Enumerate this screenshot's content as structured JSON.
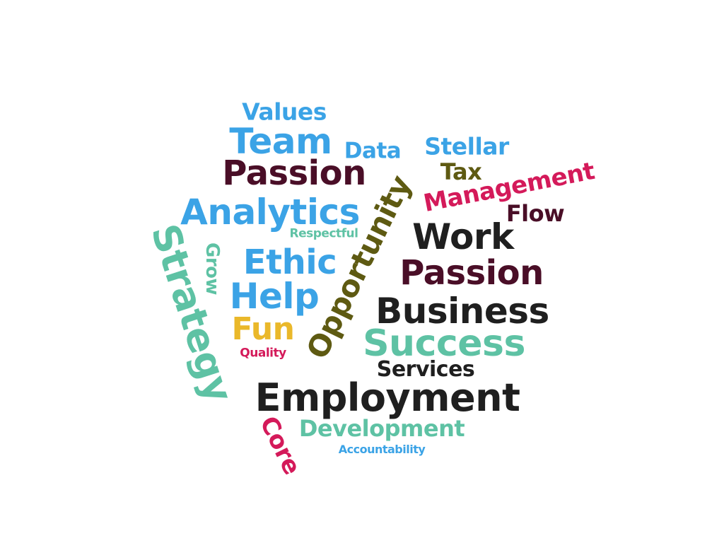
{
  "colors": {
    "blue": "#3ba3e6",
    "maroon": "#4a0e27",
    "olive": "#5e5a12",
    "magenta": "#d41a5a",
    "teal": "#5ec2a4",
    "black": "#1f1f1f",
    "yellow": "#eab82a"
  },
  "words": {
    "values": "Values",
    "team": "Team",
    "data": "Data",
    "stellar": "Stellar",
    "passion1": "Passion",
    "tax": "Tax",
    "management": "Management",
    "analytics": "Analytics",
    "flow": "Flow",
    "respectful": "Respectful",
    "work": "Work",
    "opportunity": "Opportunity",
    "strategy": "Strategy",
    "grow": "Grow",
    "ethic": "Ethic",
    "passion2": "Passion",
    "help": "Help",
    "business": "Business",
    "fun": "Fun",
    "success": "Success",
    "quality": "Quality",
    "services": "Services",
    "employment": "Employment",
    "core": "Core",
    "development": "Development",
    "accountability": "Accountability"
  },
  "word_colors": {
    "values": "blue",
    "team": "blue",
    "data": "blue",
    "stellar": "blue",
    "passion1": "maroon",
    "tax": "olive",
    "management": "magenta",
    "analytics": "blue",
    "flow": "maroon",
    "respectful": "teal",
    "work": "black",
    "opportunity": "olive",
    "strategy": "teal",
    "grow": "teal",
    "ethic": "blue",
    "passion2": "maroon",
    "help": "blue",
    "business": "black",
    "fun": "yellow",
    "success": "teal",
    "quality": "magenta",
    "services": "black",
    "employment": "black",
    "core": "magenta",
    "development": "teal",
    "accountability": "blue"
  }
}
